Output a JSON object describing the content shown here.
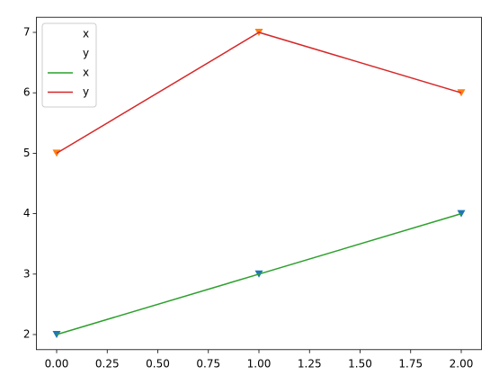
{
  "chart_data": {
    "type": "line",
    "x": [
      0,
      1,
      2
    ],
    "series": [
      {
        "name": "x",
        "color": "#1f77b4",
        "style": "marker",
        "values": [
          2,
          3,
          4
        ]
      },
      {
        "name": "y",
        "color": "#ff7f0e",
        "style": "marker",
        "values": [
          5,
          7,
          6
        ]
      },
      {
        "name": "x",
        "color": "#2ca02c",
        "style": "line",
        "values": [
          2,
          3,
          4
        ]
      },
      {
        "name": "y",
        "color": "#d62728",
        "style": "line",
        "values": [
          5,
          7,
          6
        ]
      }
    ],
    "xlim": [
      -0.1,
      2.1
    ],
    "xticks": [
      {
        "value": 0,
        "label": "0.00"
      },
      {
        "value": 0.25,
        "label": "0.25"
      },
      {
        "value": 0.5,
        "label": "0.50"
      },
      {
        "value": 0.75,
        "label": "0.75"
      },
      {
        "value": 1,
        "label": "1.00"
      },
      {
        "value": 1.25,
        "label": "1.25"
      },
      {
        "value": 1.5,
        "label": "1.50"
      },
      {
        "value": 1.75,
        "label": "1.75"
      },
      {
        "value": 2,
        "label": "2.00"
      }
    ],
    "ylim": [
      1.75,
      7.25
    ],
    "yticks": [
      2,
      3,
      4,
      5,
      6,
      7
    ],
    "legend": "upper left",
    "grid": false
  }
}
